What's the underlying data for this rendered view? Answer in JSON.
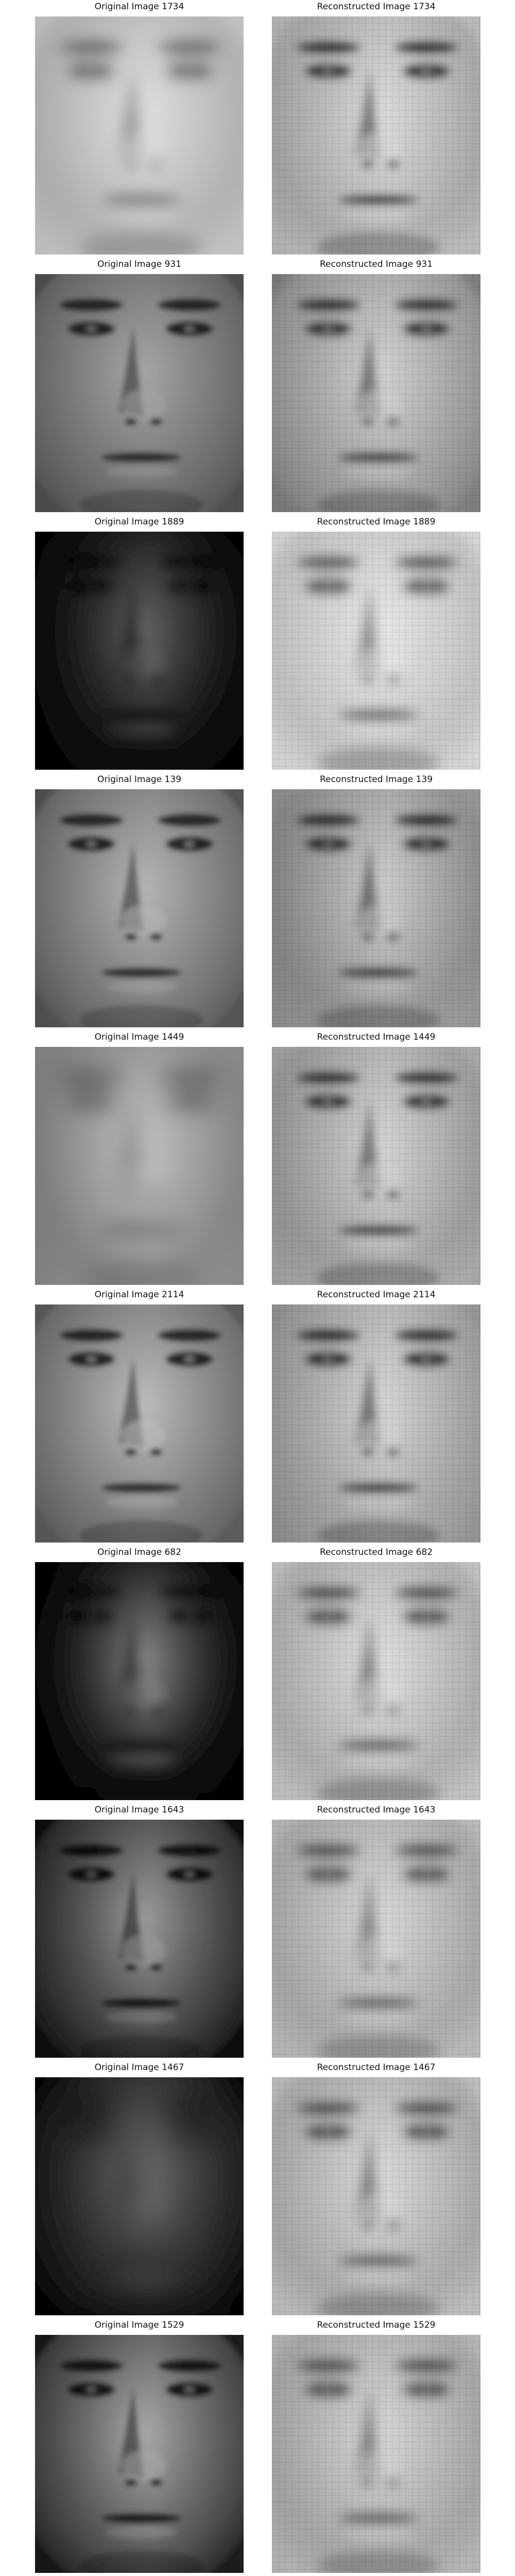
{
  "figure": {
    "rows": [
      {
        "original": {
          "title": "Original Image 1734",
          "tone": {
            "bg": "#d8d8d8",
            "skin": "#c4c4c4",
            "dark": "#3a3a3a",
            "light": "#efefef",
            "shadow": 0.15,
            "blur": 4,
            "pixelated": false
          }
        },
        "reconstructed": {
          "title": "Reconstructed Image 1734",
          "tone": {
            "bg": "#e2e2e2",
            "skin": "#cdcdcd",
            "dark": "#1a1a1a",
            "light": "#f4f4f4",
            "shadow": 0.25,
            "blur": 2,
            "pixelated": true
          }
        }
      },
      {
        "original": {
          "title": "Original Image 931",
          "tone": {
            "bg": "#5b5b5b",
            "skin": "#7a7a7a",
            "dark": "#141414",
            "light": "#b5b5b5",
            "shadow": 0.2,
            "blur": 1,
            "pixelated": false
          }
        },
        "reconstructed": {
          "title": "Reconstructed Image 931",
          "tone": {
            "bg": "#9a9a9a",
            "skin": "#b8b8b8",
            "dark": "#1a1a1a",
            "light": "#eaeaea",
            "shadow": 0.25,
            "blur": 2,
            "pixelated": true
          }
        }
      },
      {
        "original": {
          "title": "Original Image 1889",
          "tone": {
            "bg": "#080808",
            "skin": "#1e1e1e",
            "dark": "#000000",
            "light": "#9a9a9a",
            "shadow": 0.85,
            "blur": 3,
            "pixelated": false
          }
        },
        "reconstructed": {
          "title": "Reconstructed Image 1889",
          "tone": {
            "bg": "#e6e6e6",
            "skin": "#d0d0d0",
            "dark": "#2b2b2b",
            "light": "#f2f2f2",
            "shadow": 0.1,
            "blur": 3,
            "pixelated": true
          }
        }
      },
      {
        "original": {
          "title": "Original Image 139",
          "tone": {
            "bg": "#6a6a6a",
            "skin": "#8f8f8f",
            "dark": "#151515",
            "light": "#cfcfcf",
            "shadow": 0.3,
            "blur": 1,
            "pixelated": false
          }
        },
        "reconstructed": {
          "title": "Reconstructed Image 139",
          "tone": {
            "bg": "#c8c8c8",
            "skin": "#bdbdbd",
            "dark": "#101010",
            "light": "#efefef",
            "shadow": 0.35,
            "blur": 2,
            "pixelated": true
          }
        }
      },
      {
        "original": {
          "title": "Original Image 1449",
          "tone": {
            "bg": "#b0b0b0",
            "skin": "#a6a6a6",
            "dark": "#3b3b3b",
            "light": "#dedede",
            "shadow": 0.3,
            "blur": 6,
            "pixelated": false
          }
        },
        "reconstructed": {
          "title": "Reconstructed Image 1449",
          "tone": {
            "bg": "#d6d6d6",
            "skin": "#c6c6c6",
            "dark": "#1c1c1c",
            "light": "#f2f2f2",
            "shadow": 0.3,
            "blur": 2,
            "pixelated": true
          }
        }
      },
      {
        "original": {
          "title": "Original Image 2114",
          "tone": {
            "bg": "#6e6e6e",
            "skin": "#8c8c8c",
            "dark": "#141414",
            "light": "#d2d2d2",
            "shadow": 0.25,
            "blur": 1,
            "pixelated": false
          }
        },
        "reconstructed": {
          "title": "Reconstructed Image 2114",
          "tone": {
            "bg": "#bdbdbd",
            "skin": "#c9c9c9",
            "dark": "#111111",
            "light": "#f3f3f3",
            "shadow": 0.3,
            "blur": 2,
            "pixelated": true
          }
        }
      },
      {
        "original": {
          "title": "Original Image 682",
          "tone": {
            "bg": "#050505",
            "skin": "#1b1b1b",
            "dark": "#000000",
            "light": "#d8d8d8",
            "shadow": 0.9,
            "blur": 3,
            "pixelated": false
          }
        },
        "reconstructed": {
          "title": "Reconstructed Image 682",
          "tone": {
            "bg": "#d9d9d9",
            "skin": "#c2c2c2",
            "dark": "#1d1d1d",
            "light": "#eeeeee",
            "shadow": 0.15,
            "blur": 3,
            "pixelated": true
          }
        }
      },
      {
        "original": {
          "title": "Original Image 1643",
          "tone": {
            "bg": "#1a1a1a",
            "skin": "#5e5e5e",
            "dark": "#020202",
            "light": "#cfcfcf",
            "shadow": 0.6,
            "blur": 1,
            "pixelated": false
          }
        },
        "reconstructed": {
          "title": "Reconstructed Image 1643",
          "tone": {
            "bg": "#cfcfcf",
            "skin": "#bcbcbc",
            "dark": "#2a2a2a",
            "light": "#e6e6e6",
            "shadow": 0.15,
            "blur": 3,
            "pixelated": true
          }
        }
      },
      {
        "original": {
          "title": "Original Image 1467",
          "tone": {
            "bg": "#0c0c0c",
            "skin": "#3a3a3a",
            "dark": "#000000",
            "light": "#9c9c9c",
            "shadow": 0.7,
            "blur": 7,
            "pixelated": false
          }
        },
        "reconstructed": {
          "title": "Reconstructed Image 1467",
          "tone": {
            "bg": "#d4d4d4",
            "skin": "#bdbdbd",
            "dark": "#202020",
            "light": "#e8e8e8",
            "shadow": 0.15,
            "blur": 3,
            "pixelated": true
          }
        }
      },
      {
        "original": {
          "title": "Original Image 1529",
          "tone": {
            "bg": "#2a2a2a",
            "skin": "#707070",
            "dark": "#060606",
            "light": "#d6d6d6",
            "shadow": 0.5,
            "blur": 1,
            "pixelated": false
          }
        },
        "reconstructed": {
          "title": "Reconstructed Image 1529",
          "tone": {
            "bg": "#cbcbcb",
            "skin": "#b9b9b9",
            "dark": "#262626",
            "light": "#e4e4e4",
            "shadow": 0.15,
            "blur": 3,
            "pixelated": true
          }
        }
      }
    ]
  }
}
